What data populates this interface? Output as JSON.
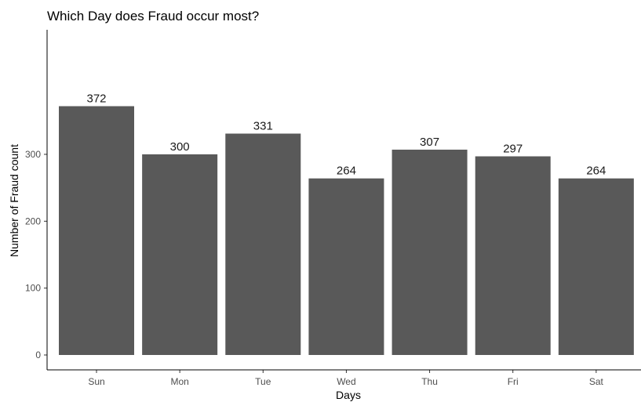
{
  "chart_data": {
    "type": "bar",
    "title": "Which Day does Fraud occur most?",
    "xlabel": "Days",
    "ylabel": "Number of Fraud count",
    "categories": [
      "Sun",
      "Mon",
      "Tue",
      "Wed",
      "Thu",
      "Fri",
      "Sat"
    ],
    "values": [
      372,
      300,
      331,
      264,
      307,
      297,
      264
    ],
    "data_labels": [
      "372",
      "300",
      "331",
      "264",
      "307",
      "297",
      "264"
    ],
    "ylim": [
      0,
      390
    ],
    "yticks": [
      0,
      100,
      200,
      300
    ],
    "ytick_labels": [
      "0",
      "100",
      "200",
      "300"
    ],
    "bar_color": "#595959",
    "grid": false,
    "legend": "none"
  }
}
